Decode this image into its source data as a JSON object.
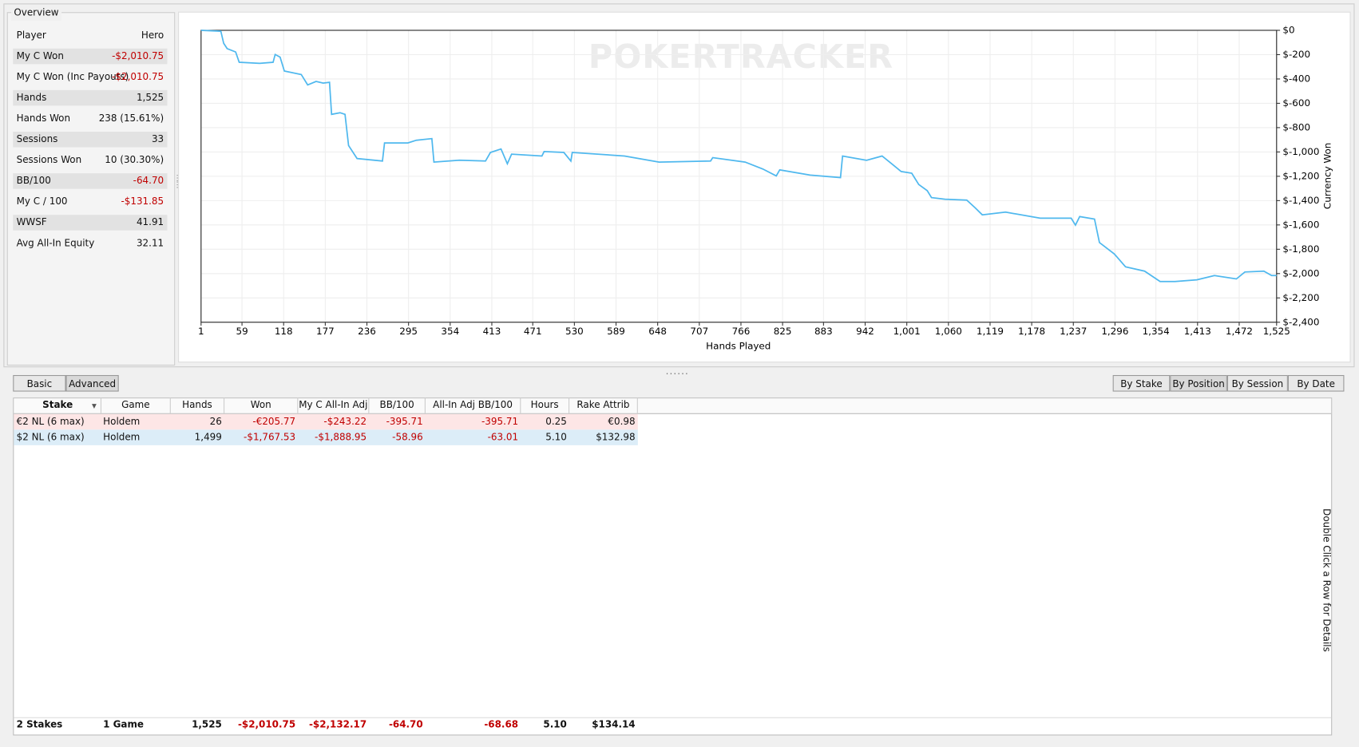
{
  "overview": {
    "title": "Overview",
    "header": [
      "Player",
      "Hero"
    ],
    "rows": [
      [
        "My C Won",
        "-$2,010.75"
      ],
      [
        "My C Won (Inc Payouts)",
        "-$2,010.75"
      ],
      [
        "Hands",
        "1,525"
      ],
      [
        "Hands Won",
        "238 (15.61%)"
      ],
      [
        "Sessions",
        "33"
      ],
      [
        "Sessions Won",
        "10 (30.30%)"
      ],
      [
        "BB/100",
        "-64.70"
      ],
      [
        "My C / 100",
        "-$131.85"
      ],
      [
        "WWSF",
        "41.91"
      ],
      [
        "Avg All-In Equity",
        "32.11"
      ]
    ]
  },
  "chart_data": {
    "type": "line",
    "watermark": "POKERTRACKER",
    "x_label": "Hands Played",
    "y_label": "Currency Won",
    "color": "#4fb8ee",
    "grid": true,
    "x": [
      1,
      29,
      33,
      38,
      50,
      55,
      84,
      103,
      106,
      113,
      119,
      143,
      152,
      164,
      174,
      183,
      186,
      198,
      205,
      210,
      222,
      258,
      261,
      294,
      306,
      328,
      331,
      367,
      404,
      411,
      426,
      435,
      441,
      484,
      487,
      515,
      525,
      527,
      601,
      650,
      723,
      726,
      772,
      797,
      816,
      821,
      864,
      907,
      910,
      944,
      966,
      981,
      993,
      1008,
      1018,
      1030,
      1036,
      1055,
      1086,
      1098,
      1108,
      1141,
      1190,
      1234,
      1240,
      1246,
      1267,
      1274,
      1295,
      1311,
      1338,
      1360,
      1381,
      1412,
      1437,
      1468,
      1480,
      1507,
      1518,
      1525
    ],
    "values": [
      0,
      -7,
      -107,
      -150,
      -178,
      -263,
      -271,
      -263,
      -199,
      -221,
      -335,
      -363,
      -449,
      -420,
      -434,
      -427,
      -691,
      -677,
      -691,
      -947,
      -1054,
      -1075,
      -926,
      -926,
      -904,
      -890,
      -1083,
      -1068,
      -1075,
      -1004,
      -976,
      -1097,
      -1018,
      -1033,
      -997,
      -1004,
      -1075,
      -1004,
      -1033,
      -1083,
      -1075,
      -1047,
      -1083,
      -1140,
      -1197,
      -1147,
      -1190,
      -1211,
      -1033,
      -1068,
      -1033,
      -1104,
      -1161,
      -1175,
      -1268,
      -1318,
      -1375,
      -1389,
      -1396,
      -1460,
      -1517,
      -1495,
      -1545,
      -1545,
      -1602,
      -1531,
      -1552,
      -1745,
      -1838,
      -1944,
      -1980,
      -2065,
      -2065,
      -2051,
      -2016,
      -2044,
      -1987,
      -1980,
      -2016,
      -2016
    ],
    "xlim": [
      1,
      1525
    ],
    "xticks": [
      1,
      59,
      118,
      177,
      236,
      295,
      354,
      413,
      471,
      530,
      589,
      648,
      707,
      766,
      825,
      883,
      942,
      {
        "value": 1001,
        "label": "1,001"
      },
      {
        "value": 1060,
        "label": "1,060"
      },
      {
        "value": 1119,
        "label": "1,119"
      },
      {
        "value": 1178,
        "label": "1,178"
      },
      {
        "value": 1237,
        "label": "1,237"
      },
      {
        "value": 1296,
        "label": "1,296"
      },
      {
        "value": 1354,
        "label": "1,354"
      },
      {
        "value": 1413,
        "label": "1,413"
      },
      {
        "value": 1472,
        "label": "1,472"
      },
      {
        "value": 1525,
        "label": "1,525"
      }
    ],
    "ylim": [
      -2400,
      0
    ],
    "yticks": [
      {
        "value": 0,
        "label": "$0"
      },
      {
        "value": -200,
        "label": "$-200"
      },
      {
        "value": -400,
        "label": "$-400"
      },
      {
        "value": -600,
        "label": "$-600"
      },
      {
        "value": -800,
        "label": "$-800"
      },
      {
        "value": -1000,
        "label": "$-1,000"
      },
      {
        "value": -1200,
        "label": "$-1,200"
      },
      {
        "value": -1400,
        "label": "$-1,400"
      },
      {
        "value": -1600,
        "label": "$-1,600"
      },
      {
        "value": -1800,
        "label": "$-1,800"
      },
      {
        "value": -2000,
        "label": "$-2,000"
      },
      {
        "value": -2200,
        "label": "$-2,200"
      },
      {
        "value": -2400,
        "label": "$-2,400"
      }
    ]
  },
  "buttons": {
    "view": [
      "Basic",
      "Advanced"
    ],
    "group": [
      "By Stake",
      "By Position",
      "By Session",
      "By Date"
    ]
  },
  "table": {
    "columns": [
      "Stake",
      "Game",
      "Hands",
      "Won",
      "My C All-In Adj",
      "BB/100",
      "All-In Adj BB/100",
      "Hours",
      "Rake Attrib"
    ],
    "rows": [
      [
        "€2 NL (6 max)",
        "Holdem",
        "26",
        "-€205.77",
        "-$243.22",
        "-395.71",
        "-395.71",
        "0.25",
        "€0.98"
      ],
      [
        "$2 NL (6 max)",
        "Holdem",
        "1,499",
        "-$1,767.53",
        "-$1,888.95",
        "-58.96",
        "-63.01",
        "5.10",
        "$132.98"
      ]
    ],
    "footer": [
      "2 Stakes",
      "1 Game",
      "1,525",
      "-$2,010.75",
      "-$2,132.17",
      "-64.70",
      "-68.68",
      "5.10",
      "$134.14"
    ]
  },
  "hint": "Double Click a Row for Details"
}
